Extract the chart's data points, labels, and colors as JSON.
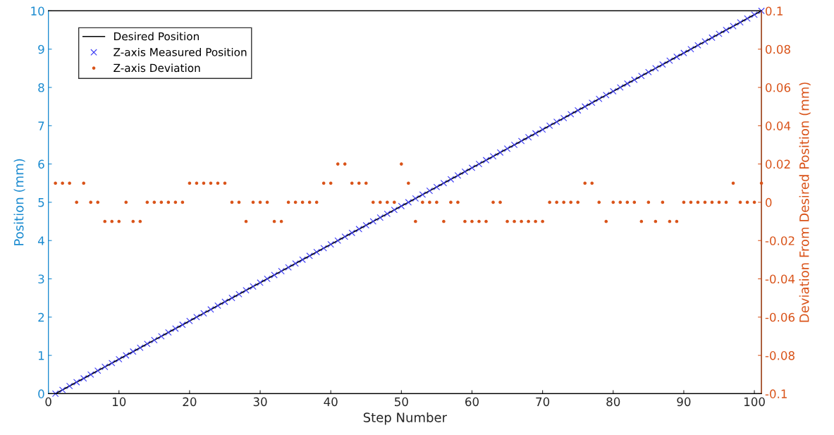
{
  "chart_data": {
    "type": "line",
    "xlabel": "Step Number",
    "ylabel": "Position (mm)",
    "y2label": "Deviation From Desired Position (mm)",
    "x": [
      1,
      2,
      3,
      4,
      5,
      6,
      7,
      8,
      9,
      10,
      11,
      12,
      13,
      14,
      15,
      16,
      17,
      18,
      19,
      20,
      21,
      22,
      23,
      24,
      25,
      26,
      27,
      28,
      29,
      30,
      31,
      32,
      33,
      34,
      35,
      36,
      37,
      38,
      39,
      40,
      41,
      42,
      43,
      44,
      45,
      46,
      47,
      48,
      49,
      50,
      51,
      52,
      53,
      54,
      55,
      56,
      57,
      58,
      59,
      60,
      61,
      62,
      63,
      64,
      65,
      66,
      67,
      68,
      69,
      70,
      71,
      72,
      73,
      74,
      75,
      76,
      77,
      78,
      79,
      80,
      81,
      82,
      83,
      84,
      85,
      86,
      87,
      88,
      89,
      90,
      91,
      92,
      93,
      94,
      95,
      96,
      97,
      98,
      99,
      100,
      101
    ],
    "series": [
      {
        "name": "Desired Position",
        "color": "#000000",
        "marker": "none",
        "line_style": "solid",
        "values": [
          0,
          0.1,
          0.2,
          0.3,
          0.4,
          0.5,
          0.6,
          0.7,
          0.8,
          0.9,
          1,
          1.1,
          1.2,
          1.3,
          1.4,
          1.5,
          1.6,
          1.7,
          1.8,
          1.9,
          2,
          2.1,
          2.2,
          2.3,
          2.4,
          2.5,
          2.6,
          2.7,
          2.8,
          2.9,
          3,
          3.1,
          3.2,
          3.3,
          3.4,
          3.5,
          3.6,
          3.7,
          3.8,
          3.9,
          4,
          4.1,
          4.2,
          4.3,
          4.4,
          4.5,
          4.6,
          4.7,
          4.8,
          4.9,
          5,
          5.1,
          5.2,
          5.3,
          5.4,
          5.5,
          5.6,
          5.7,
          5.8,
          5.9,
          6,
          6.1,
          6.2,
          6.3,
          6.4,
          6.5,
          6.6,
          6.7,
          6.8,
          6.9,
          7,
          7.1,
          7.2,
          7.3,
          7.4,
          7.5,
          7.6,
          7.7,
          7.8,
          7.9,
          8,
          8.1,
          8.2,
          8.3,
          8.4,
          8.5,
          8.6,
          8.7,
          8.8,
          8.9,
          9,
          9.1,
          9.2,
          9.3,
          9.4,
          9.5,
          9.6,
          9.7,
          9.8,
          9.9,
          10
        ]
      },
      {
        "name": "Z-axis Measured Position",
        "type": "scatter",
        "color": "#3b3bf5",
        "marker": "cross",
        "values": [
          0,
          0.1,
          0.2,
          0.3,
          0.4,
          0.5,
          0.6,
          0.7,
          0.8,
          0.9,
          1,
          1.1,
          1.2,
          1.3,
          1.4,
          1.5,
          1.6,
          1.7,
          1.8,
          1.9,
          2,
          2.1,
          2.2,
          2.3,
          2.4,
          2.5,
          2.6,
          2.7,
          2.8,
          2.9,
          3,
          3.1,
          3.2,
          3.3,
          3.4,
          3.5,
          3.6,
          3.7,
          3.8,
          3.9,
          4,
          4.1,
          4.2,
          4.3,
          4.4,
          4.5,
          4.6,
          4.7,
          4.8,
          4.9,
          5,
          5.1,
          5.2,
          5.3,
          5.4,
          5.5,
          5.6,
          5.7,
          5.8,
          5.9,
          6,
          6.1,
          6.2,
          6.3,
          6.4,
          6.5,
          6.6,
          6.7,
          6.8,
          6.9,
          7,
          7.1,
          7.2,
          7.3,
          7.4,
          7.5,
          7.6,
          7.7,
          7.8,
          7.9,
          8,
          8.1,
          8.2,
          8.3,
          8.4,
          8.5,
          8.6,
          8.7,
          8.8,
          8.9,
          9,
          9.1,
          9.2,
          9.3,
          9.4,
          9.5,
          9.6,
          9.7,
          9.8,
          9.9,
          10
        ]
      },
      {
        "name": "Z-axis Deviation",
        "type": "scatter",
        "axis": "y2",
        "color": "#d95319",
        "marker": "circle",
        "values": [
          0.01,
          0.01,
          0.01,
          0,
          0.01,
          0,
          0,
          -0.01,
          -0.01,
          -0.01,
          0,
          -0.01,
          -0.01,
          0,
          0,
          0,
          0,
          0,
          0,
          0.01,
          0.01,
          0.01,
          0.01,
          0.01,
          0.01,
          0,
          0,
          -0.01,
          0,
          0,
          0,
          -0.01,
          -0.01,
          0,
          0,
          0,
          0,
          0,
          0.01,
          0.01,
          0.02,
          0.02,
          0.01,
          0.01,
          0.01,
          0,
          0,
          0,
          0,
          0.02,
          0.01,
          -0.01,
          0,
          0,
          0,
          -0.01,
          0,
          0,
          -0.01,
          -0.01,
          -0.01,
          -0.01,
          0,
          0,
          -0.01,
          -0.01,
          -0.01,
          -0.01,
          -0.01,
          -0.01,
          0,
          0,
          0,
          0,
          0,
          0.01,
          0.01,
          0,
          -0.01,
          0,
          0,
          0,
          0,
          -0.01,
          0,
          -0.01,
          0,
          -0.01,
          -0.01,
          0,
          0,
          0,
          0,
          0,
          0,
          0,
          0.01,
          0,
          0,
          0,
          0.01
        ]
      }
    ],
    "xlim": [
      0,
      101
    ],
    "xticks": [
      0,
      10,
      20,
      30,
      40,
      50,
      60,
      70,
      80,
      90,
      100
    ],
    "ylim": [
      0,
      10
    ],
    "yticks": [
      0,
      1,
      2,
      3,
      4,
      5,
      6,
      7,
      8,
      9,
      10
    ],
    "y2lim": [
      -0.1,
      0.1
    ],
    "y2ticks": [
      -0.1,
      -0.08,
      -0.06,
      -0.04,
      -0.02,
      0,
      0.02,
      0.04,
      0.06,
      0.08,
      0.1
    ],
    "grid": false,
    "legend": "top left"
  }
}
